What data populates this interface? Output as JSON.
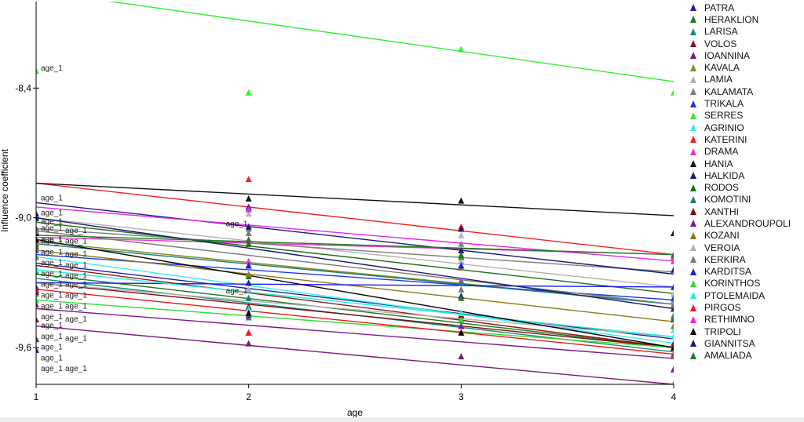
{
  "chart_data": {
    "type": "line",
    "xlabel": "age",
    "ylabel": "Influence coefficient",
    "x_ticks": [
      "1",
      "2",
      "3",
      "4"
    ],
    "y_ticks": [
      "-8,4",
      "-9,0",
      "-9,6"
    ],
    "xlim": [
      1,
      4
    ],
    "ylim": [
      -9.77,
      -8.0
    ],
    "grid": false,
    "legend_position": "right",
    "point_label": "age_1",
    "series": [
      {
        "name": "PATRA",
        "color": "#1f1f9f",
        "line": [
          -9.21,
          -9.56
        ],
        "points": [
          -9.61,
          -9.3,
          -9.36,
          -9.7
        ]
      },
      {
        "name": "HERAKLION",
        "color": "#1a7a1a",
        "line": [
          -9.26,
          -9.6
        ],
        "points": [
          -9.25,
          -9.27,
          -9.37,
          -9.6
        ]
      },
      {
        "name": "LARISA",
        "color": "#1a8a7a",
        "line": [
          -9.28,
          -9.62
        ],
        "points": [
          -9.35,
          -9.46,
          -9.5,
          -9.64
        ]
      },
      {
        "name": "VOLOS",
        "color": "#8a1a1a",
        "line": [
          -9.22,
          -9.6
        ],
        "points": [
          -9.47,
          -9.53,
          -9.45,
          -9.58
        ]
      },
      {
        "name": "IOANNINA",
        "color": "#7a1a7a",
        "line": [
          -9.5,
          -9.77
        ],
        "points": [
          -9.56,
          -9.58,
          -9.64,
          -9.77
        ]
      },
      {
        "name": "KAVALA",
        "color": "#8a8a1a",
        "line": [
          -9.11,
          -9.4
        ],
        "points": [
          -9.11,
          -9.12,
          -9.29,
          -9.45
        ]
      },
      {
        "name": "LAMIA",
        "color": "#b4b4b4",
        "line": [
          -9.0,
          -9.32
        ],
        "points": [
          -9.0,
          -8.98,
          -9.08,
          -9.35
        ]
      },
      {
        "name": "KALAMATA",
        "color": "#808080",
        "line": [
          -9.05,
          -9.25
        ],
        "points": [
          -9.05,
          -9.05,
          -9.12,
          -9.38
        ]
      },
      {
        "name": "TRIKALA",
        "color": "#1a3aee",
        "line": [
          -9.17,
          -9.38
        ],
        "points": [
          -9.12,
          -9.22,
          -9.2,
          -9.37
        ]
      },
      {
        "name": "SERRES",
        "color": "#33ee33",
        "line": [
          -7.95,
          -8.37
        ],
        "points": [
          -8.32,
          -8.42,
          -8.22,
          -8.42
        ]
      },
      {
        "name": "AGRINIO",
        "color": "#33eeee",
        "line": [
          -9.18,
          -9.58
        ],
        "points": [
          -9.23,
          -9.37,
          -9.45,
          -9.52
        ]
      },
      {
        "name": "KATERINI",
        "color": "#ee2222",
        "line": [
          -8.84,
          -9.17
        ],
        "points": [
          -9.12,
          -8.82,
          -9.04,
          -9.18
        ]
      },
      {
        "name": "DRAMA",
        "color": "#ee33cc",
        "line": [
          -9.09,
          -9.17
        ],
        "points": [
          -9.14,
          -9.2,
          -9.29,
          -9.5
        ]
      },
      {
        "name": "HANIA",
        "color": "#111111",
        "line": [
          -8.84,
          -8.99
        ],
        "points": [
          -9.07,
          -8.91,
          -8.92,
          -9.07
        ]
      },
      {
        "name": "HALKIDA",
        "color": "#1a1a7a",
        "line": [
          -8.93,
          -9.26
        ],
        "points": [
          -8.98,
          -8.95,
          -9.15,
          -9.24
        ]
      },
      {
        "name": "RODOS",
        "color": "#1a6e1a",
        "line": [
          -9.02,
          -9.35
        ],
        "points": [
          -9.05,
          -9.12,
          -9.18,
          -9.47
        ]
      },
      {
        "name": "KOMOTINI",
        "color": "#1a7e7e",
        "line": [
          -9.12,
          -9.4
        ],
        "points": [
          -9.15,
          -9.37,
          -9.3,
          -9.46
        ]
      },
      {
        "name": "XANTHI",
        "color": "#7a0a0a",
        "line": [
          -9.3,
          -9.6
        ],
        "points": [
          -9.34,
          -9.41,
          -9.45,
          -9.6
        ]
      },
      {
        "name": "ALEXANDROUPOLI",
        "color": "#7e1a8e",
        "line": [
          -9.42,
          -9.65
        ],
        "points": [
          -9.4,
          -9.45,
          -9.5,
          -9.7
        ]
      },
      {
        "name": "KOZANI",
        "color": "#8a7a1a",
        "line": [
          -9.15,
          -9.48
        ],
        "points": [
          -9.18,
          -9.26,
          -9.23,
          -9.5
        ]
      },
      {
        "name": "VEROIA",
        "color": "#b0b0b0",
        "line": [
          -9.3,
          -9.55
        ],
        "points": [
          -9.33,
          -9.33,
          -9.2,
          -9.55
        ]
      },
      {
        "name": "KERKIRA",
        "color": "#7a7a7a",
        "line": [
          -9.06,
          -9.4
        ],
        "points": [
          -9.06,
          -9.07,
          -9.33,
          -9.4
        ]
      },
      {
        "name": "KARDITSA",
        "color": "#1a1aee",
        "line": [
          -9.3,
          -9.32
        ],
        "points": [
          -9.32,
          -9.22,
          -9.22,
          -9.32
        ]
      },
      {
        "name": "KORINTHOS",
        "color": "#33dd33",
        "line": [
          -9.38,
          -9.6
        ],
        "points": [
          -9.38,
          -9.44,
          -9.47,
          -9.6
        ]
      },
      {
        "name": "PTOLEMAIDA",
        "color": "#22eedd",
        "line": [
          -9.24,
          -9.55
        ],
        "points": [
          -9.24,
          -9.42,
          -9.44,
          -9.55
        ]
      },
      {
        "name": "PIRGOS",
        "color": "#ee1a1a",
        "line": [
          -9.33,
          -9.63
        ],
        "points": [
          -9.33,
          -9.53,
          -9.05,
          -9.63
        ]
      },
      {
        "name": "RETHIMNO",
        "color": "#ee22ee",
        "line": [
          -8.95,
          -9.2
        ],
        "points": [
          -9.12,
          -8.96,
          -9.05,
          -9.2
        ]
      },
      {
        "name": "TRIPOLI",
        "color": "#000000",
        "line": [
          -9.1,
          -9.6
        ],
        "points": [
          -9.1,
          -9.44,
          -9.53,
          -9.6
        ]
      },
      {
        "name": "GIANNITSA",
        "color": "#1a1a6e",
        "line": [
          -9.0,
          -9.42
        ],
        "points": [
          -9.0,
          -9.04,
          -9.05,
          -9.42
        ]
      },
      {
        "name": "AMALIADA",
        "color": "#1e7e1e",
        "line": [
          -9.08,
          -9.17
        ],
        "points": [
          -9.13,
          -9.1,
          -9.17,
          -9.17
        ]
      }
    ]
  }
}
